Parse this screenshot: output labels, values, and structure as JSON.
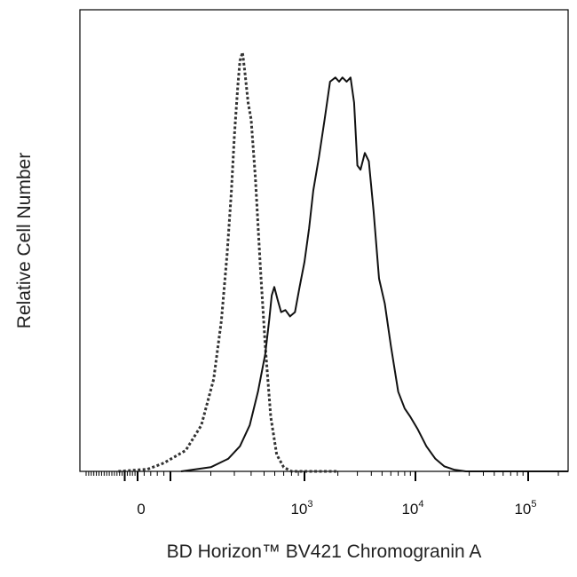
{
  "chart_data": {
    "type": "line",
    "title": "",
    "xlabel": "BD Horizon™ BV421 Chromogranin A",
    "ylabel": "Relative Cell Number",
    "x_scale": "biexponential",
    "x_ticks": [
      {
        "value": 0,
        "base": "0",
        "exp": ""
      },
      {
        "value": 1000,
        "base": "10",
        "exp": "3"
      },
      {
        "value": 10000,
        "base": "10",
        "exp": "4"
      },
      {
        "value": 100000,
        "base": "10",
        "exp": "5"
      }
    ],
    "xlim": [
      -400,
      250000
    ],
    "ylim": [
      0,
      100
    ],
    "grid": false,
    "legend": "none",
    "series": [
      {
        "style": "dotted",
        "color": "#333333",
        "points": [
          [
            -150,
            0
          ],
          [
            30,
            0.5
          ],
          [
            80,
            2
          ],
          [
            130,
            5
          ],
          [
            170,
            11
          ],
          [
            210,
            22
          ],
          [
            240,
            36
          ],
          [
            265,
            52
          ],
          [
            285,
            67
          ],
          [
            300,
            80
          ],
          [
            318,
            92
          ],
          [
            330,
            98
          ],
          [
            345,
            100
          ],
          [
            360,
            95
          ],
          [
            380,
            88
          ],
          [
            400,
            84
          ],
          [
            430,
            70
          ],
          [
            470,
            48
          ],
          [
            510,
            30
          ],
          [
            560,
            13
          ],
          [
            620,
            4
          ],
          [
            700,
            1
          ],
          [
            800,
            0
          ],
          [
            2000,
            0
          ]
        ]
      },
      {
        "style": "solid",
        "color": "#111111",
        "points": [
          [
            120,
            0
          ],
          [
            200,
            1
          ],
          [
            270,
            3
          ],
          [
            330,
            6
          ],
          [
            390,
            11
          ],
          [
            450,
            19
          ],
          [
            510,
            28
          ],
          [
            545,
            36
          ],
          [
            570,
            42
          ],
          [
            595,
            44
          ],
          [
            630,
            41
          ],
          [
            670,
            38
          ],
          [
            720,
            38.5
          ],
          [
            780,
            37
          ],
          [
            850,
            38
          ],
          [
            920,
            44
          ],
          [
            1000,
            50
          ],
          [
            1100,
            58
          ],
          [
            1200,
            67
          ],
          [
            1350,
            75
          ],
          [
            1520,
            84
          ],
          [
            1700,
            93
          ],
          [
            1900,
            94
          ],
          [
            2050,
            93
          ],
          [
            2200,
            94
          ],
          [
            2400,
            93
          ],
          [
            2600,
            94
          ],
          [
            2800,
            88
          ],
          [
            3000,
            73
          ],
          [
            3200,
            72
          ],
          [
            3500,
            76
          ],
          [
            3800,
            74
          ],
          [
            4200,
            62
          ],
          [
            4700,
            46
          ],
          [
            5300,
            40
          ],
          [
            6000,
            30
          ],
          [
            7000,
            19
          ],
          [
            8000,
            15
          ],
          [
            9000,
            13
          ],
          [
            10500,
            10
          ],
          [
            12500,
            6
          ],
          [
            15000,
            3
          ],
          [
            18000,
            1.2
          ],
          [
            22000,
            0.4
          ],
          [
            28000,
            0
          ],
          [
            250000,
            0
          ]
        ]
      }
    ]
  }
}
